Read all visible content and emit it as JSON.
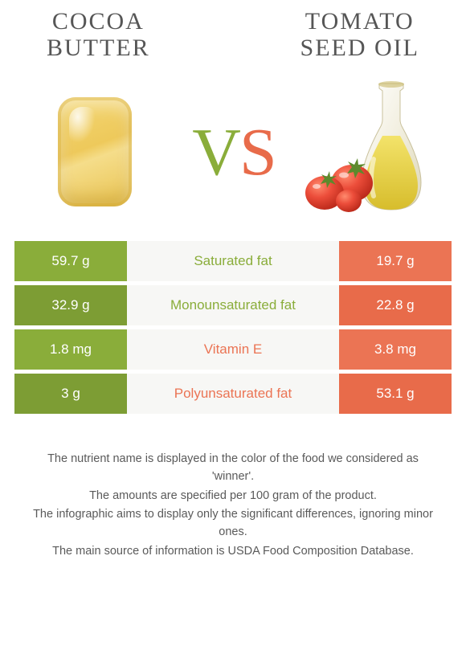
{
  "left": {
    "title": "COCOA\nBUTTER",
    "color": "#8aad3a",
    "color_dark": "#7d9d34"
  },
  "right": {
    "title": "TOMATO\nSEED OIL",
    "color": "#eb7454",
    "color_dark": "#e86b4a"
  },
  "vs": {
    "v": "V",
    "s": "S"
  },
  "rows": [
    {
      "left": "59.7 g",
      "label": "Saturated fat",
      "right": "19.7 g",
      "winner": "left"
    },
    {
      "left": "32.9 g",
      "label": "Monounsaturated fat",
      "right": "22.8 g",
      "winner": "left"
    },
    {
      "left": "1.8 mg",
      "label": "Vitamin E",
      "right": "3.8 mg",
      "winner": "right"
    },
    {
      "left": "3 g",
      "label": "Polyunsaturated fat",
      "right": "53.1 g",
      "winner": "right"
    }
  ],
  "neutral_bg": "#f7f7f5",
  "footer": [
    "The nutrient name is displayed in the color of the food we considered as 'winner'.",
    "The amounts are specified per 100 gram of the product.",
    "The infographic aims to display only the significant differences, ignoring minor ones.",
    "The main source of information is USDA Food Composition Database."
  ],
  "footer_color": "#5a5a5a",
  "title_fontsize": 30,
  "cell_fontsize": 17
}
